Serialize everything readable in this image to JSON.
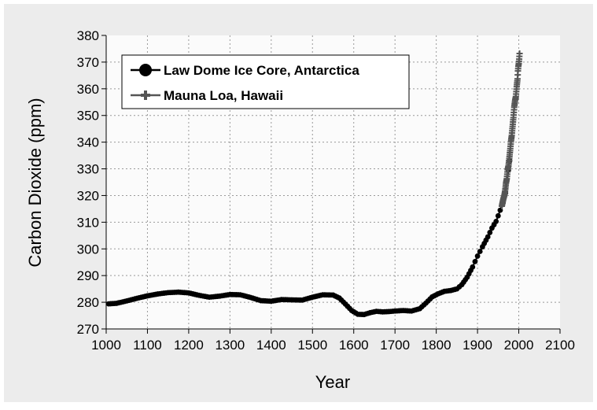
{
  "chart_data": {
    "type": "line",
    "title": "",
    "xlabel": "Year",
    "ylabel": "Carbon Dioxide (ppm)",
    "xlim": [
      1000,
      2100
    ],
    "ylim": [
      270,
      380
    ],
    "x_ticks": [
      1000,
      1100,
      1200,
      1300,
      1400,
      1500,
      1600,
      1700,
      1800,
      1900,
      2000,
      2100
    ],
    "y_ticks": [
      270,
      280,
      290,
      300,
      310,
      320,
      330,
      340,
      350,
      360,
      370,
      380
    ],
    "grid": true,
    "legend_position": "top-left",
    "series": [
      {
        "name": "Law Dome Ice Core, Antarctica",
        "marker": "circle",
        "color": "#000000",
        "points": [
          [
            1006,
            279.4
          ],
          [
            1025,
            279.6
          ],
          [
            1050,
            280.5
          ],
          [
            1075,
            281.5
          ],
          [
            1100,
            282.4
          ],
          [
            1125,
            283.1
          ],
          [
            1150,
            283.6
          ],
          [
            1175,
            283.8
          ],
          [
            1200,
            283.5
          ],
          [
            1225,
            282.6
          ],
          [
            1250,
            281.9
          ],
          [
            1275,
            282.3
          ],
          [
            1300,
            282.9
          ],
          [
            1325,
            282.8
          ],
          [
            1350,
            281.8
          ],
          [
            1375,
            280.6
          ],
          [
            1400,
            280.4
          ],
          [
            1425,
            281.0
          ],
          [
            1450,
            280.9
          ],
          [
            1475,
            280.8
          ],
          [
            1500,
            281.9
          ],
          [
            1525,
            282.8
          ],
          [
            1550,
            282.7
          ],
          [
            1565,
            281.6
          ],
          [
            1580,
            279.3
          ],
          [
            1595,
            276.9
          ],
          [
            1610,
            275.5
          ],
          [
            1625,
            275.4
          ],
          [
            1640,
            276.1
          ],
          [
            1655,
            276.6
          ],
          [
            1670,
            276.4
          ],
          [
            1685,
            276.5
          ],
          [
            1700,
            276.7
          ],
          [
            1720,
            276.9
          ],
          [
            1740,
            276.7
          ],
          [
            1760,
            277.6
          ],
          [
            1775,
            279.7
          ],
          [
            1790,
            282.0
          ],
          [
            1805,
            283.2
          ],
          [
            1820,
            284.1
          ],
          [
            1835,
            284.4
          ],
          [
            1850,
            285.0
          ],
          [
            1862,
            286.6
          ],
          [
            1875,
            289.4
          ],
          [
            1888,
            293.2
          ],
          [
            1900,
            297.3
          ],
          [
            1912,
            300.8
          ],
          [
            1925,
            304.5
          ],
          [
            1935,
            307.8
          ],
          [
            1945,
            310.3
          ],
          [
            1955,
            314.5
          ],
          [
            1962,
            317.3
          ],
          [
            1968,
            321.0
          ],
          [
            1975,
            329.5
          ],
          [
            1978,
            333.0
          ]
        ]
      },
      {
        "name": "Mauna Loa, Hawaii",
        "marker": "plus",
        "color": "#555555",
        "points": [
          [
            1959,
            316.0
          ],
          [
            1961,
            317.6
          ],
          [
            1963,
            318.9
          ],
          [
            1965,
            320.0
          ],
          [
            1967,
            321.8
          ],
          [
            1969,
            324.6
          ],
          [
            1971,
            326.3
          ],
          [
            1973,
            329.7
          ],
          [
            1975,
            331.1
          ],
          [
            1977,
            333.8
          ],
          [
            1979,
            336.8
          ],
          [
            1981,
            340.1
          ],
          [
            1983,
            342.6
          ],
          [
            1985,
            345.9
          ],
          [
            1987,
            349.2
          ],
          [
            1989,
            353.1
          ],
          [
            1991,
            355.6
          ],
          [
            1993,
            357.1
          ],
          [
            1995,
            360.8
          ],
          [
            1997,
            363.7
          ],
          [
            1998,
            366.7
          ],
          [
            1999,
            368.4
          ],
          [
            2000,
            369.5
          ],
          [
            2001,
            371.1
          ],
          [
            2002,
            373.2
          ]
        ]
      }
    ]
  }
}
